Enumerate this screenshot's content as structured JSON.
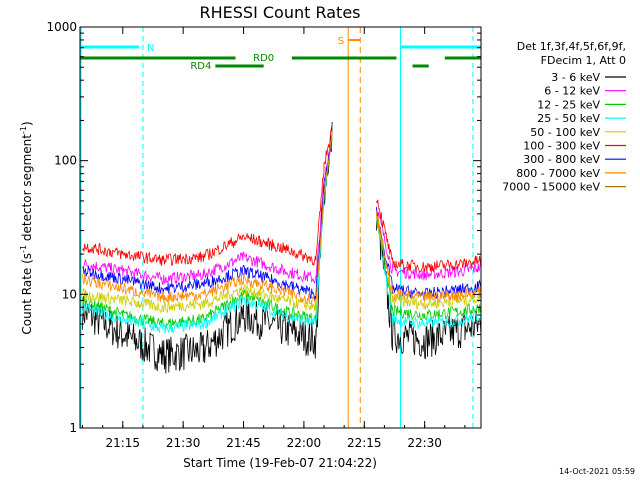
{
  "chart_data": {
    "type": "line",
    "title": "RHESSI Count Rates",
    "xlabel": "Start Time (19-Feb-07 21:04:22)",
    "ylabel_main": "Count Rate (s",
    "ylabel_sup1": "-1",
    "ylabel_mid": " detector segment",
    "ylabel_sup2": "-1",
    "ylabel_end": ")",
    "yscale": "log",
    "ylim": [
      1,
      1000
    ],
    "xlim": [
      "21:04:22",
      "22:44:00"
    ],
    "x_ticks": [
      "21:15",
      "21:30",
      "21:45",
      "22:00",
      "22:15",
      "22:30"
    ],
    "y_ticks": [
      "1",
      "10",
      "100",
      "1000"
    ],
    "legend_header": [
      "Det 1f,3f,4f,5f,6f,9f,",
      "FDecim 1, Att 0"
    ],
    "series": [
      {
        "name": "3 - 6 keV",
        "color": "#000000",
        "x": [
          "21:05",
          "21:15",
          "21:25",
          "21:35",
          "21:45",
          "21:55",
          "22:03",
          "22:05",
          "22:07",
          "22:09",
          "22:16",
          "22:18",
          "22:22",
          "22:30",
          "22:40",
          "22:44"
        ],
        "y": [
          7.5,
          5,
          3.5,
          3.8,
          7,
          5.5,
          4.5,
          60,
          150,
          0,
          0,
          40,
          5,
          4.5,
          5.5,
          6
        ]
      },
      {
        "name": "6 - 12 keV",
        "color": "#ff00ff",
        "x": [
          "21:05",
          "21:15",
          "21:25",
          "21:35",
          "21:45",
          "21:55",
          "22:03",
          "22:05",
          "22:07",
          "22:09",
          "22:16",
          "22:18",
          "22:22",
          "22:30",
          "22:40",
          "22:44"
        ],
        "y": [
          17,
          15,
          13,
          14,
          19,
          15,
          13,
          70,
          160,
          0,
          0,
          45,
          15,
          14,
          15,
          16
        ]
      },
      {
        "name": "12 - 25 keV",
        "color": "#00cc00",
        "x": [
          "21:05",
          "21:15",
          "21:25",
          "21:35",
          "21:45",
          "21:55",
          "22:03",
          "22:05",
          "22:07",
          "22:09",
          "22:16",
          "22:18",
          "22:22",
          "22:30",
          "22:40",
          "22:44"
        ],
        "y": [
          9,
          7,
          6,
          6.5,
          10,
          7.5,
          6.5,
          55,
          140,
          0,
          0,
          38,
          7.5,
          7,
          7.5,
          8
        ]
      },
      {
        "name": "25 - 50 keV",
        "color": "#00ffff",
        "x": [
          "21:05",
          "21:15",
          "21:25",
          "21:35",
          "21:45",
          "21:55",
          "22:03",
          "22:05",
          "22:07",
          "22:09",
          "22:16",
          "22:18",
          "22:22",
          "22:30",
          "22:40",
          "22:44"
        ],
        "y": [
          8,
          6.5,
          5.5,
          6,
          9,
          7,
          6,
          55,
          150,
          0,
          0,
          38,
          6.5,
          6,
          6.5,
          7
        ]
      },
      {
        "name": "50 - 100 keV",
        "color": "#cccc00",
        "x": [
          "21:05",
          "21:15",
          "21:25",
          "21:35",
          "21:45",
          "21:55",
          "22:03",
          "22:05",
          "22:07",
          "22:09",
          "22:16",
          "22:18",
          "22:22",
          "22:30",
          "22:40",
          "22:44"
        ],
        "y": [
          10,
          9,
          8,
          8.5,
          11,
          9,
          8,
          60,
          150,
          0,
          0,
          40,
          9,
          8.5,
          9,
          9.5
        ]
      },
      {
        "name": "100 - 300 keV",
        "color": "#ff0000",
        "x": [
          "21:05",
          "21:15",
          "21:25",
          "21:35",
          "21:45",
          "21:55",
          "22:03",
          "22:05",
          "22:07",
          "22:09",
          "22:16",
          "22:18",
          "22:22",
          "22:30",
          "22:40",
          "22:44"
        ],
        "y": [
          23,
          20,
          18,
          19,
          27,
          22,
          18,
          90,
          180,
          0,
          0,
          55,
          17,
          16,
          17,
          18
        ]
      },
      {
        "name": "300 - 800 keV",
        "color": "#0000ff",
        "x": [
          "21:05",
          "21:15",
          "21:25",
          "21:35",
          "21:45",
          "21:55",
          "22:03",
          "22:05",
          "22:07",
          "22:09",
          "22:16",
          "22:18",
          "22:22",
          "22:30",
          "22:40",
          "22:44"
        ],
        "y": [
          15,
          13,
          11,
          12,
          15,
          12,
          10,
          65,
          150,
          0,
          0,
          42,
          11,
          10,
          11,
          11.5
        ]
      },
      {
        "name": "800 - 7000 keV",
        "color": "#ff8800",
        "x": [
          "21:05",
          "21:15",
          "21:25",
          "21:35",
          "21:45",
          "21:55",
          "22:03",
          "22:05",
          "22:07",
          "22:09",
          "22:16",
          "22:18",
          "22:22",
          "22:30",
          "22:40",
          "22:44"
        ],
        "y": [
          13,
          11,
          9.5,
          10,
          13,
          10.5,
          9,
          60,
          150,
          0,
          0,
          40,
          10,
          9.5,
          10,
          10.5
        ]
      },
      {
        "name": "7000 - 15000 keV",
        "color": "#aa7700",
        "x": [],
        "y": []
      }
    ],
    "annotations": {
      "night": {
        "label": "N",
        "color": "#00ffff"
      },
      "saa": {
        "label": "S",
        "color": "#ff8800"
      },
      "rd0": {
        "label": "RD0",
        "color": "#008800"
      },
      "rd4": {
        "label": "RD4",
        "color": "#008800"
      }
    },
    "grid": false
  },
  "footer": {
    "timestamp": "14-Oct-2021 05:59"
  }
}
